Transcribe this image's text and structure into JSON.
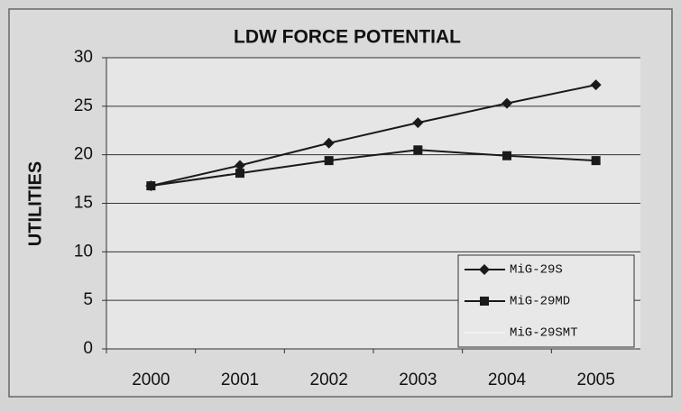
{
  "chart_data": {
    "type": "line",
    "title": "LDW FORCE POTENTIAL",
    "y_label": "UTILITIES",
    "categories": [
      "2000",
      "2001",
      "2002",
      "2003",
      "2004",
      "2005"
    ],
    "series": [
      {
        "name": "MiG-29S",
        "color": "#1a1a1a",
        "marker": "diamond",
        "values": [
          16.8,
          18.9,
          21.2,
          23.3,
          25.3,
          27.2
        ]
      },
      {
        "name": "MiG-29MD",
        "color": "#1a1a1a",
        "marker": "square",
        "values": [
          16.8,
          18.1,
          19.4,
          20.5,
          19.9,
          19.4
        ]
      },
      {
        "name": "MiG-29SMT",
        "color": "#f2f2f2",
        "marker": "none",
        "values": [
          16.8,
          null,
          null,
          null,
          null,
          null
        ]
      }
    ],
    "ylim": [
      0,
      30
    ],
    "yticks": [
      0,
      5,
      10,
      15,
      20,
      25,
      30
    ],
    "grid": true,
    "legend": "bottom-right"
  }
}
